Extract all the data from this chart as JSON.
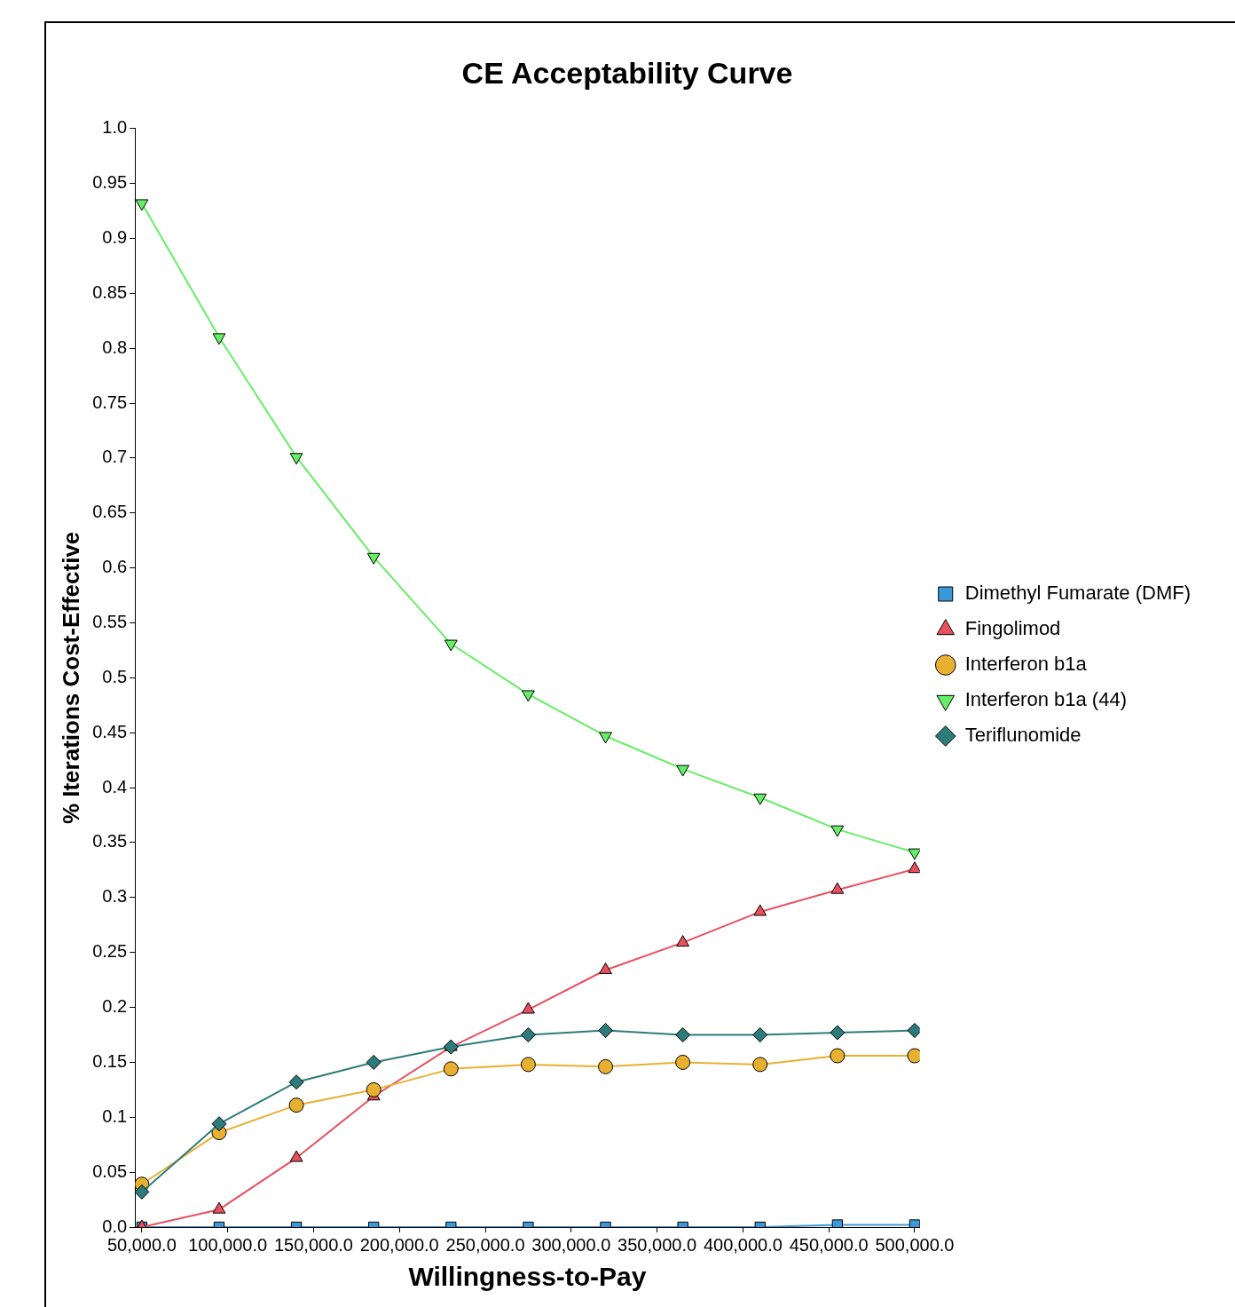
{
  "chart_data": {
    "type": "line",
    "title": "CE Acceptability Curve",
    "xlabel": "Willingness-to-Pay",
    "ylabel": "% Iterations Cost-Effective",
    "x": [
      50000,
      95000,
      140000,
      185000,
      230000,
      275000,
      320000,
      365000,
      410000,
      455000,
      500000
    ],
    "xlim": [
      46000,
      503000
    ],
    "xticks": [
      {
        "value": 50000,
        "label": "50,000.0"
      },
      {
        "value": 100000,
        "label": "100,000.0"
      },
      {
        "value": 150000,
        "label": "150,000.0"
      },
      {
        "value": 200000,
        "label": "200,000.0"
      },
      {
        "value": 250000,
        "label": "250,000.0"
      },
      {
        "value": 300000,
        "label": "300,000.0"
      },
      {
        "value": 350000,
        "label": "350,000.0"
      },
      {
        "value": 400000,
        "label": "400,000.0"
      },
      {
        "value": 450000,
        "label": "450,000.0"
      },
      {
        "value": 500000,
        "label": "500,000.0"
      }
    ],
    "ylim": [
      0,
      1
    ],
    "yticks": [
      {
        "value": 0,
        "label": "0.0"
      },
      0.05,
      {
        "value": 0.1,
        "label": "0.1"
      },
      0.15,
      {
        "value": 0.2,
        "label": "0.2"
      },
      0.25,
      {
        "value": 0.3,
        "label": "0.3"
      },
      0.35,
      {
        "value": 0.4,
        "label": "0.4"
      },
      0.45,
      {
        "value": 0.5,
        "label": "0.5"
      },
      0.55,
      {
        "value": 0.6,
        "label": "0.6"
      },
      0.65,
      {
        "value": 0.7,
        "label": "0.7"
      },
      0.75,
      {
        "value": 0.8,
        "label": "0.8"
      },
      0.85,
      {
        "value": 0.9,
        "label": "0.9"
      },
      0.95,
      {
        "value": 1,
        "label": "1.0"
      }
    ],
    "grid": false,
    "legend": "right",
    "series": [
      {
        "name": "Dimethyl Fumarate (DMF)",
        "color": "#3a9ad9",
        "marker": "square",
        "values": [
          0,
          0,
          0,
          0,
          0,
          0,
          0,
          0,
          0,
          0.002,
          0.002
        ]
      },
      {
        "name": "Fingolimod",
        "color": "#e8505f",
        "marker": "triangle",
        "values": [
          0,
          0.016,
          0.063,
          0.119,
          0.164,
          0.198,
          0.234,
          0.259,
          0.287,
          0.307,
          0.326
        ]
      },
      {
        "name": "Interferon b1a",
        "color": "#e8b030",
        "marker": "circle",
        "values": [
          0.039,
          0.086,
          0.111,
          0.125,
          0.144,
          0.148,
          0.146,
          0.15,
          0.148,
          0.156,
          0.156
        ]
      },
      {
        "name": "Interferon b1a (44)",
        "color": "#66ee66",
        "marker": "triangle",
        "values": [
          0.932,
          0.81,
          0.701,
          0.61,
          0.531,
          0.485,
          0.447,
          0.417,
          0.391,
          0.362,
          0.341
        ]
      },
      {
        "name": "Teriflunomide",
        "color": "#2e7b7b",
        "marker": "diamond",
        "values": [
          0.032,
          0.094,
          0.132,
          0.15,
          0.164,
          0.175,
          0.179,
          0.175,
          0.175,
          0.177,
          0.179
        ]
      }
    ]
  }
}
